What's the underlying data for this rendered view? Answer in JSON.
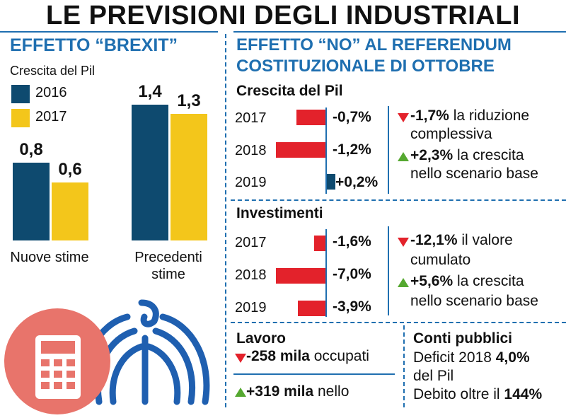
{
  "title": "LE PREVISIONI DEGLI INDUSTRIALI",
  "colors": {
    "blue": "#0e4a6f",
    "yellow": "#f3c61b",
    "red": "#e3222b",
    "green": "#55a830",
    "accent": "#1f6fb0"
  },
  "left": {
    "header": "EFFETTO “BREXIT”",
    "subtitle": "Crescita del Pil",
    "legend": [
      {
        "name": "2016",
        "color": "#0e4a6f"
      },
      {
        "name": "2017",
        "color": "#f3c61b"
      }
    ]
  },
  "right": {
    "header_line1": "EFFETTO “NO” AL REFERENDUM",
    "header_line2": "COSTITUZIONALE DI OTTOBRE",
    "pil": {
      "label": "Crescita del Pil",
      "note1_value": "-1,7%",
      "note1_text_a": "la riduzione",
      "note1_text_b": "complessiva",
      "note2_value": "+2,3%",
      "note2_text_a": "la crescita",
      "note2_text_b": "nello scenario base"
    },
    "inv": {
      "label": "Investimenti",
      "note1_value": "-12,1%",
      "note1_text_a": "il valore",
      "note1_text_b": "cumulato",
      "note2_value": "+5,6%",
      "note2_text_a": "la crescita",
      "note2_text_b": "nello scenario base"
    },
    "lavoro": {
      "label": "Lavoro",
      "line1_value": "-258 mila",
      "line1_text": "occupati",
      "line2_value": "+319 mila",
      "line2_text": "nello"
    },
    "conti": {
      "label": "Conti pubblici",
      "line1_text": "Deficit 2018",
      "line1_value": "4,0%",
      "line2_text": "del Pil",
      "line3_text": "Debito oltre il",
      "line3_value": "144%"
    }
  },
  "chart_data": [
    {
      "type": "bar",
      "title": "EFFETTO “BREXIT”",
      "ylabel": "Crescita del Pil",
      "categories": [
        "Nuove stime",
        "Precedenti stime"
      ],
      "series": [
        {
          "name": "2016",
          "values": [
            0.8,
            1.4
          ],
          "labels": [
            "0,8",
            "1,4"
          ]
        },
        {
          "name": "2017",
          "values": [
            0.6,
            1.3
          ],
          "labels": [
            "0,6",
            "1,3"
          ]
        }
      ],
      "ylim": [
        0,
        1.6
      ]
    },
    {
      "type": "bar",
      "title": "Crescita del Pil",
      "categories": [
        "2017",
        "2018",
        "2019"
      ],
      "values": [
        -0.7,
        -1.2,
        0.2
      ],
      "labels": [
        "-0,7%",
        "-1,2%",
        "+0,2%"
      ]
    },
    {
      "type": "bar",
      "title": "Investimenti",
      "categories": [
        "2017",
        "2018",
        "2019"
      ],
      "values": [
        -1.6,
        -7.0,
        -3.9
      ],
      "labels": [
        "-1,6%",
        "-7,0%",
        "-3,9%"
      ]
    }
  ]
}
